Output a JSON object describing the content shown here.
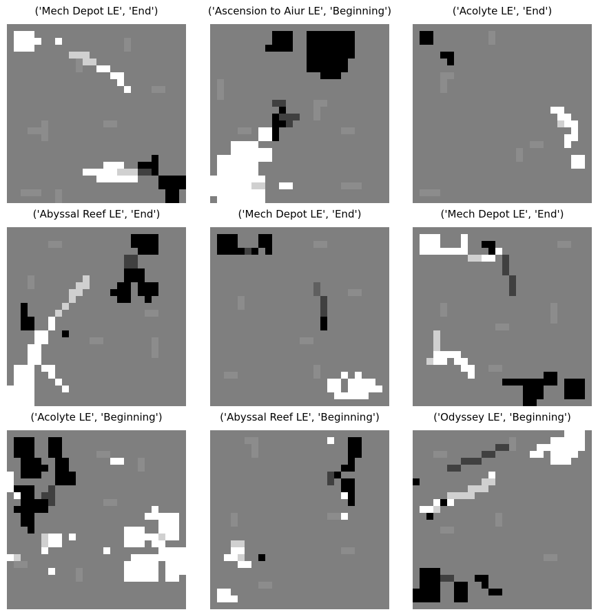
{
  "figure": {
    "panels": [
      {
        "title": "('Mech Depot LE', 'End')"
      },
      {
        "title": "('Ascension to Aiur LE', 'Beginning')"
      },
      {
        "title": "('Acolyte LE', 'End')"
      },
      {
        "title": "('Abyssal Reef LE', 'End')"
      },
      {
        "title": "('Mech Depot LE', 'End')"
      },
      {
        "title": "('Mech Depot LE', 'End')"
      },
      {
        "title": "('Acolyte LE', 'Beginning')"
      },
      {
        "title": "('Abyssal Reef LE', 'Beginning')"
      },
      {
        "title": "('Odyssey LE', 'Beginning')"
      }
    ]
  },
  "colors": {
    "background_gray": "#7f7f7f",
    "terrain_gray": "#8c8c8c",
    "positive": "#ffffff",
    "negative": "#000000"
  }
}
